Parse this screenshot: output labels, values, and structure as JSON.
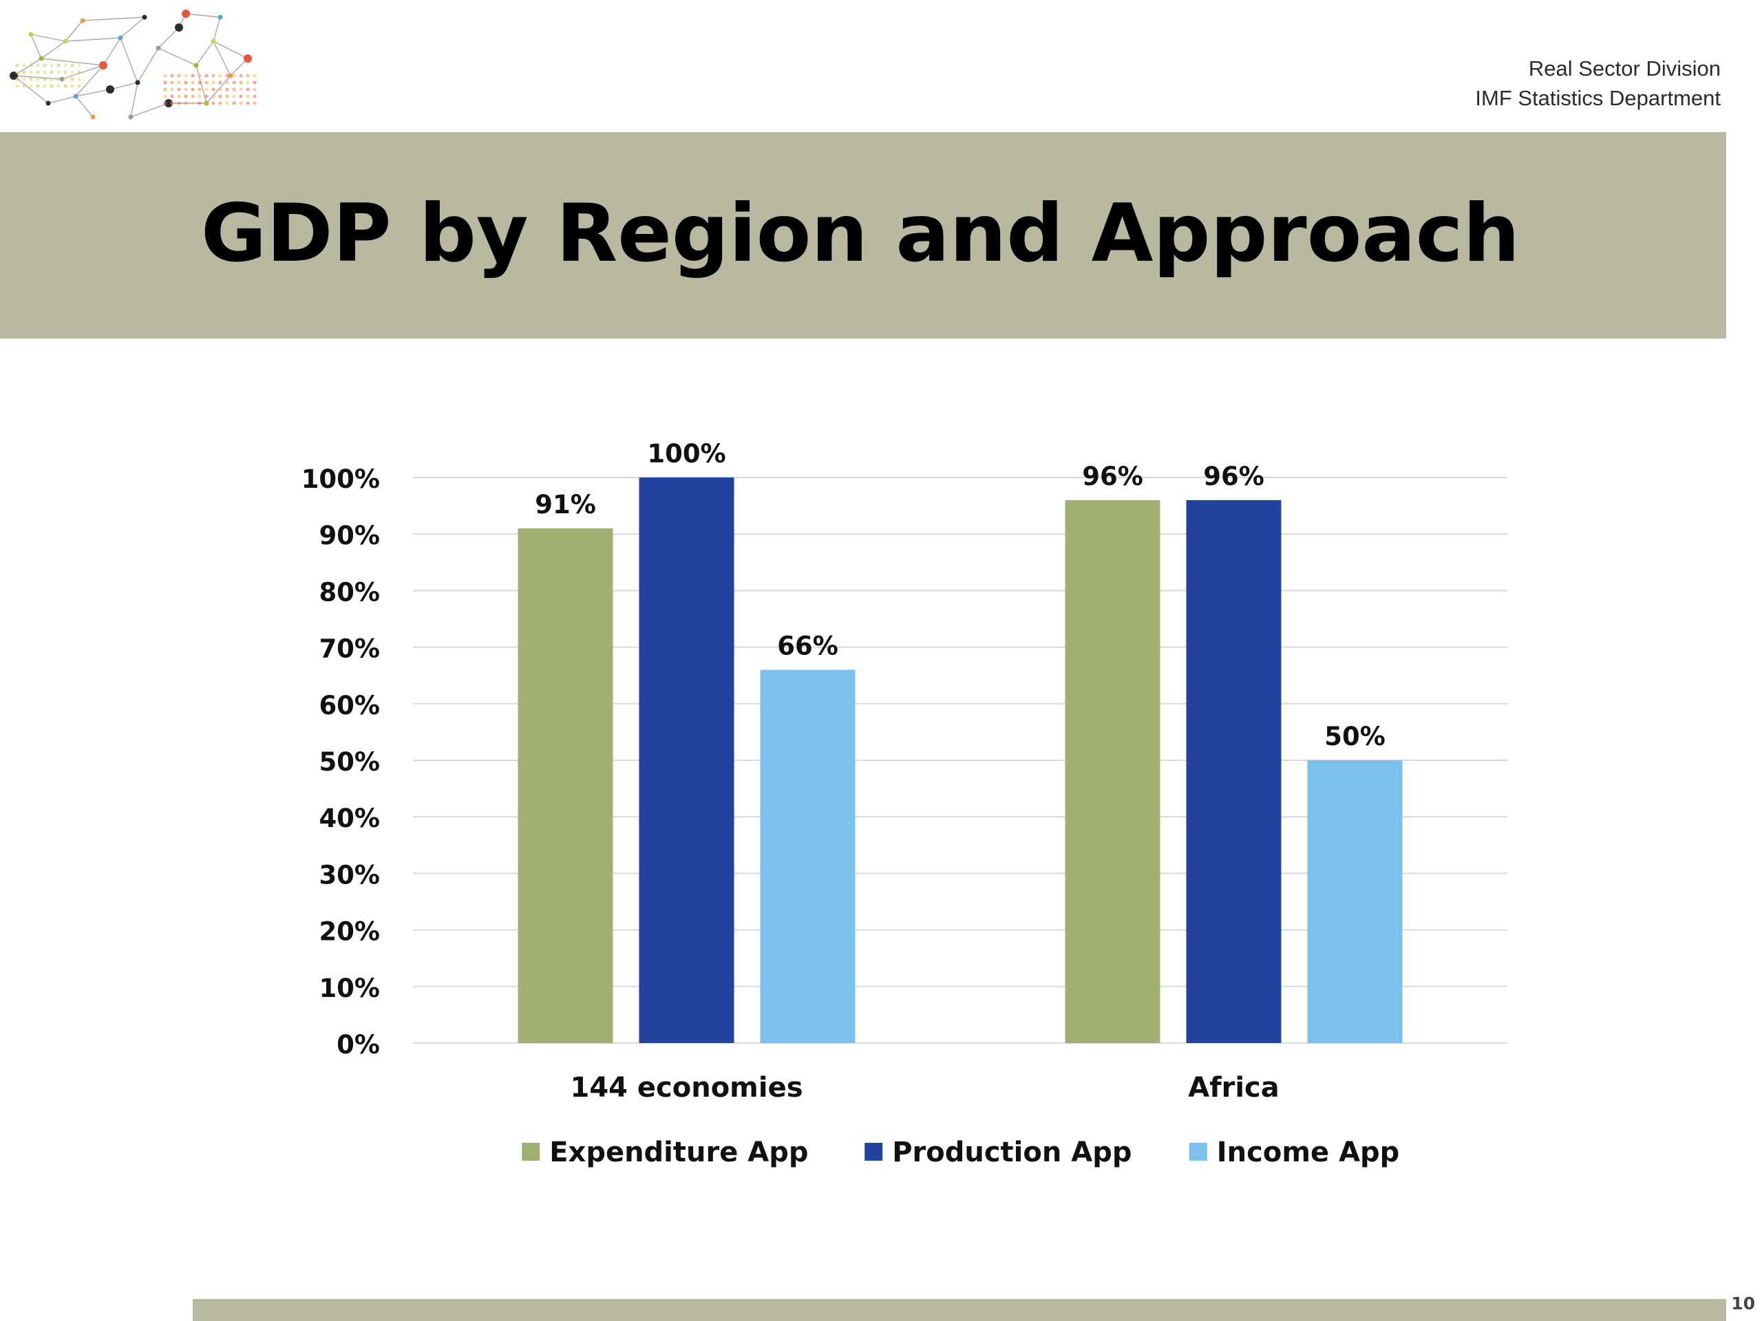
{
  "header": {
    "org_line1": "Real Sector Division",
    "org_line2": "IMF Statistics Department",
    "logo_icon": "network-dots-logo"
  },
  "title": "GDP by Region and Approach",
  "page_number": "10",
  "colors": {
    "band": "#b9b9a2",
    "expenditure": "#a1b070",
    "production": "#21439b",
    "income": "#7cc1ed",
    "gridline": "#d9d9d9"
  },
  "chart_data": {
    "type": "bar",
    "categories": [
      "144 economies",
      "Africa"
    ],
    "series": [
      {
        "name": "Expenditure App",
        "values": [
          91,
          96
        ],
        "labels": [
          "91%",
          "96%"
        ],
        "color": "#a1b070"
      },
      {
        "name": "Production App",
        "values": [
          100,
          96
        ],
        "labels": [
          "100%",
          "96%"
        ],
        "color": "#21439b"
      },
      {
        "name": "Income App",
        "values": [
          66,
          50
        ],
        "labels": [
          "66%",
          "50%"
        ],
        "color": "#7cc1ed"
      }
    ],
    "ylim": [
      0,
      100
    ],
    "yticks": [
      0,
      10,
      20,
      30,
      40,
      50,
      60,
      70,
      80,
      90,
      100
    ],
    "ytick_labels": [
      "0%",
      "10%",
      "20%",
      "30%",
      "40%",
      "50%",
      "60%",
      "70%",
      "80%",
      "90%",
      "100%"
    ],
    "grid": true,
    "legend_position": "bottom",
    "xlabel": "",
    "ylabel": ""
  }
}
